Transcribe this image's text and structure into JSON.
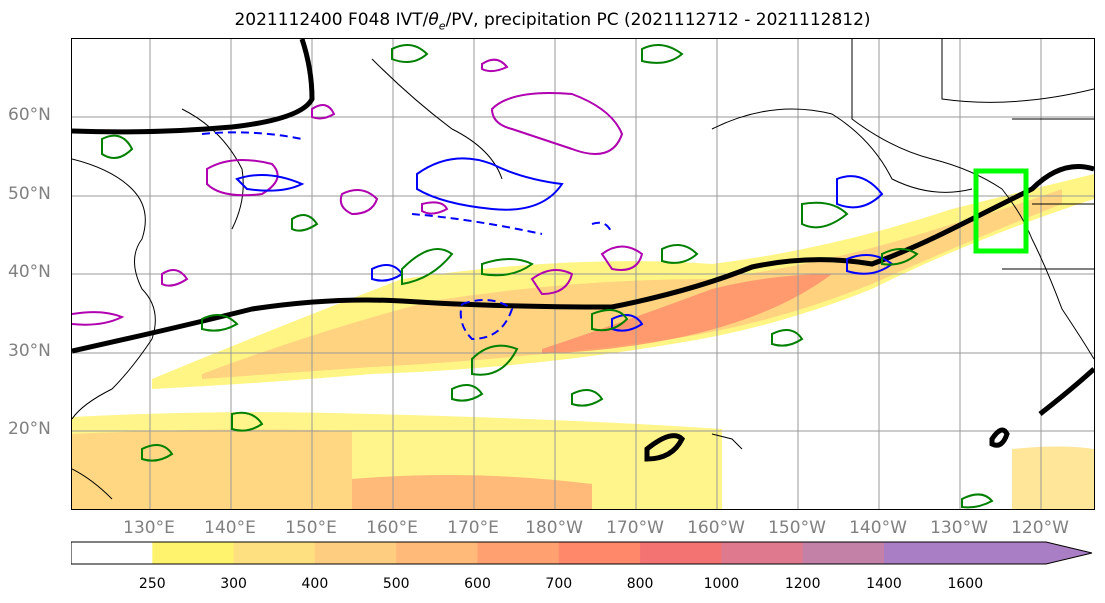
{
  "title_main": "2021112400 F048 IVT/",
  "title_theta": "θ",
  "title_sub": "e",
  "title_rest": "/PV, precipitation PC (2021112712 - 2021112812)",
  "lat_labels": [
    "60°N",
    "50°N",
    "40°N",
    "30°N",
    "20°N"
  ],
  "lon_labels": [
    "130°E",
    "140°E",
    "150°E",
    "160°E",
    "170°E",
    "180°W",
    "170°W",
    "160°W",
    "150°W",
    "140°W",
    "130°W",
    "120°W"
  ],
  "colorbar": {
    "levels": [
      "250",
      "300",
      "400",
      "500",
      "600",
      "700",
      "800",
      "1000",
      "1200",
      "1400",
      "1600"
    ],
    "colors": [
      "#ffffff",
      "#fff36e",
      "#ffe080",
      "#ffcd7f",
      "#ffb978",
      "#ffa071",
      "#ff876a",
      "#f37373",
      "#df7a8e",
      "#c381a8",
      "#a97ec4"
    ]
  },
  "legend_colors": {
    "jet_contour": "#000000",
    "pv_positive": "#b000b0",
    "pv_negative": "#0000ff",
    "theta_e": "#008000",
    "highlight_box": "#00ff00"
  }
}
